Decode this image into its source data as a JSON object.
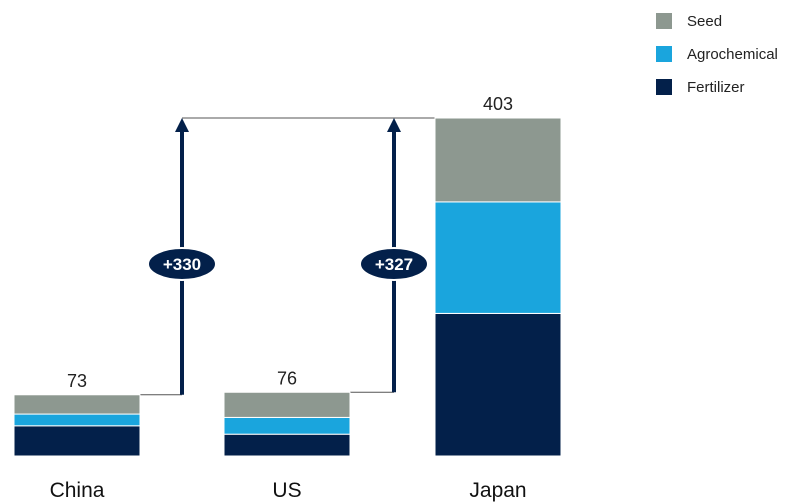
{
  "chart_data": {
    "type": "bar",
    "stacked": true,
    "categories": [
      "China",
      "US",
      "Japan"
    ],
    "series": [
      {
        "name": "Fertilizer",
        "color": "#03204a",
        "values": [
          36,
          26,
          170
        ]
      },
      {
        "name": "Agrochemical",
        "color": "#1aa5dd",
        "values": [
          14,
          20,
          133
        ]
      },
      {
        "name": "Seed",
        "color": "#8d9890",
        "values": [
          23,
          30,
          100
        ]
      }
    ],
    "totals": [
      {
        "value": 73,
        "label": "73"
      },
      {
        "value": 76,
        "label": "76"
      },
      {
        "value": 403,
        "label": "403"
      }
    ],
    "deltas": [
      {
        "from": "China",
        "to": "Japan",
        "value": 330,
        "label": "+330"
      },
      {
        "from": "US",
        "to": "Japan",
        "value": 327,
        "label": "+327"
      }
    ],
    "ylim": [
      0,
      403
    ],
    "grid": false,
    "legend_position": "top-right",
    "title": "",
    "xlabel": "",
    "ylabel": ""
  }
}
